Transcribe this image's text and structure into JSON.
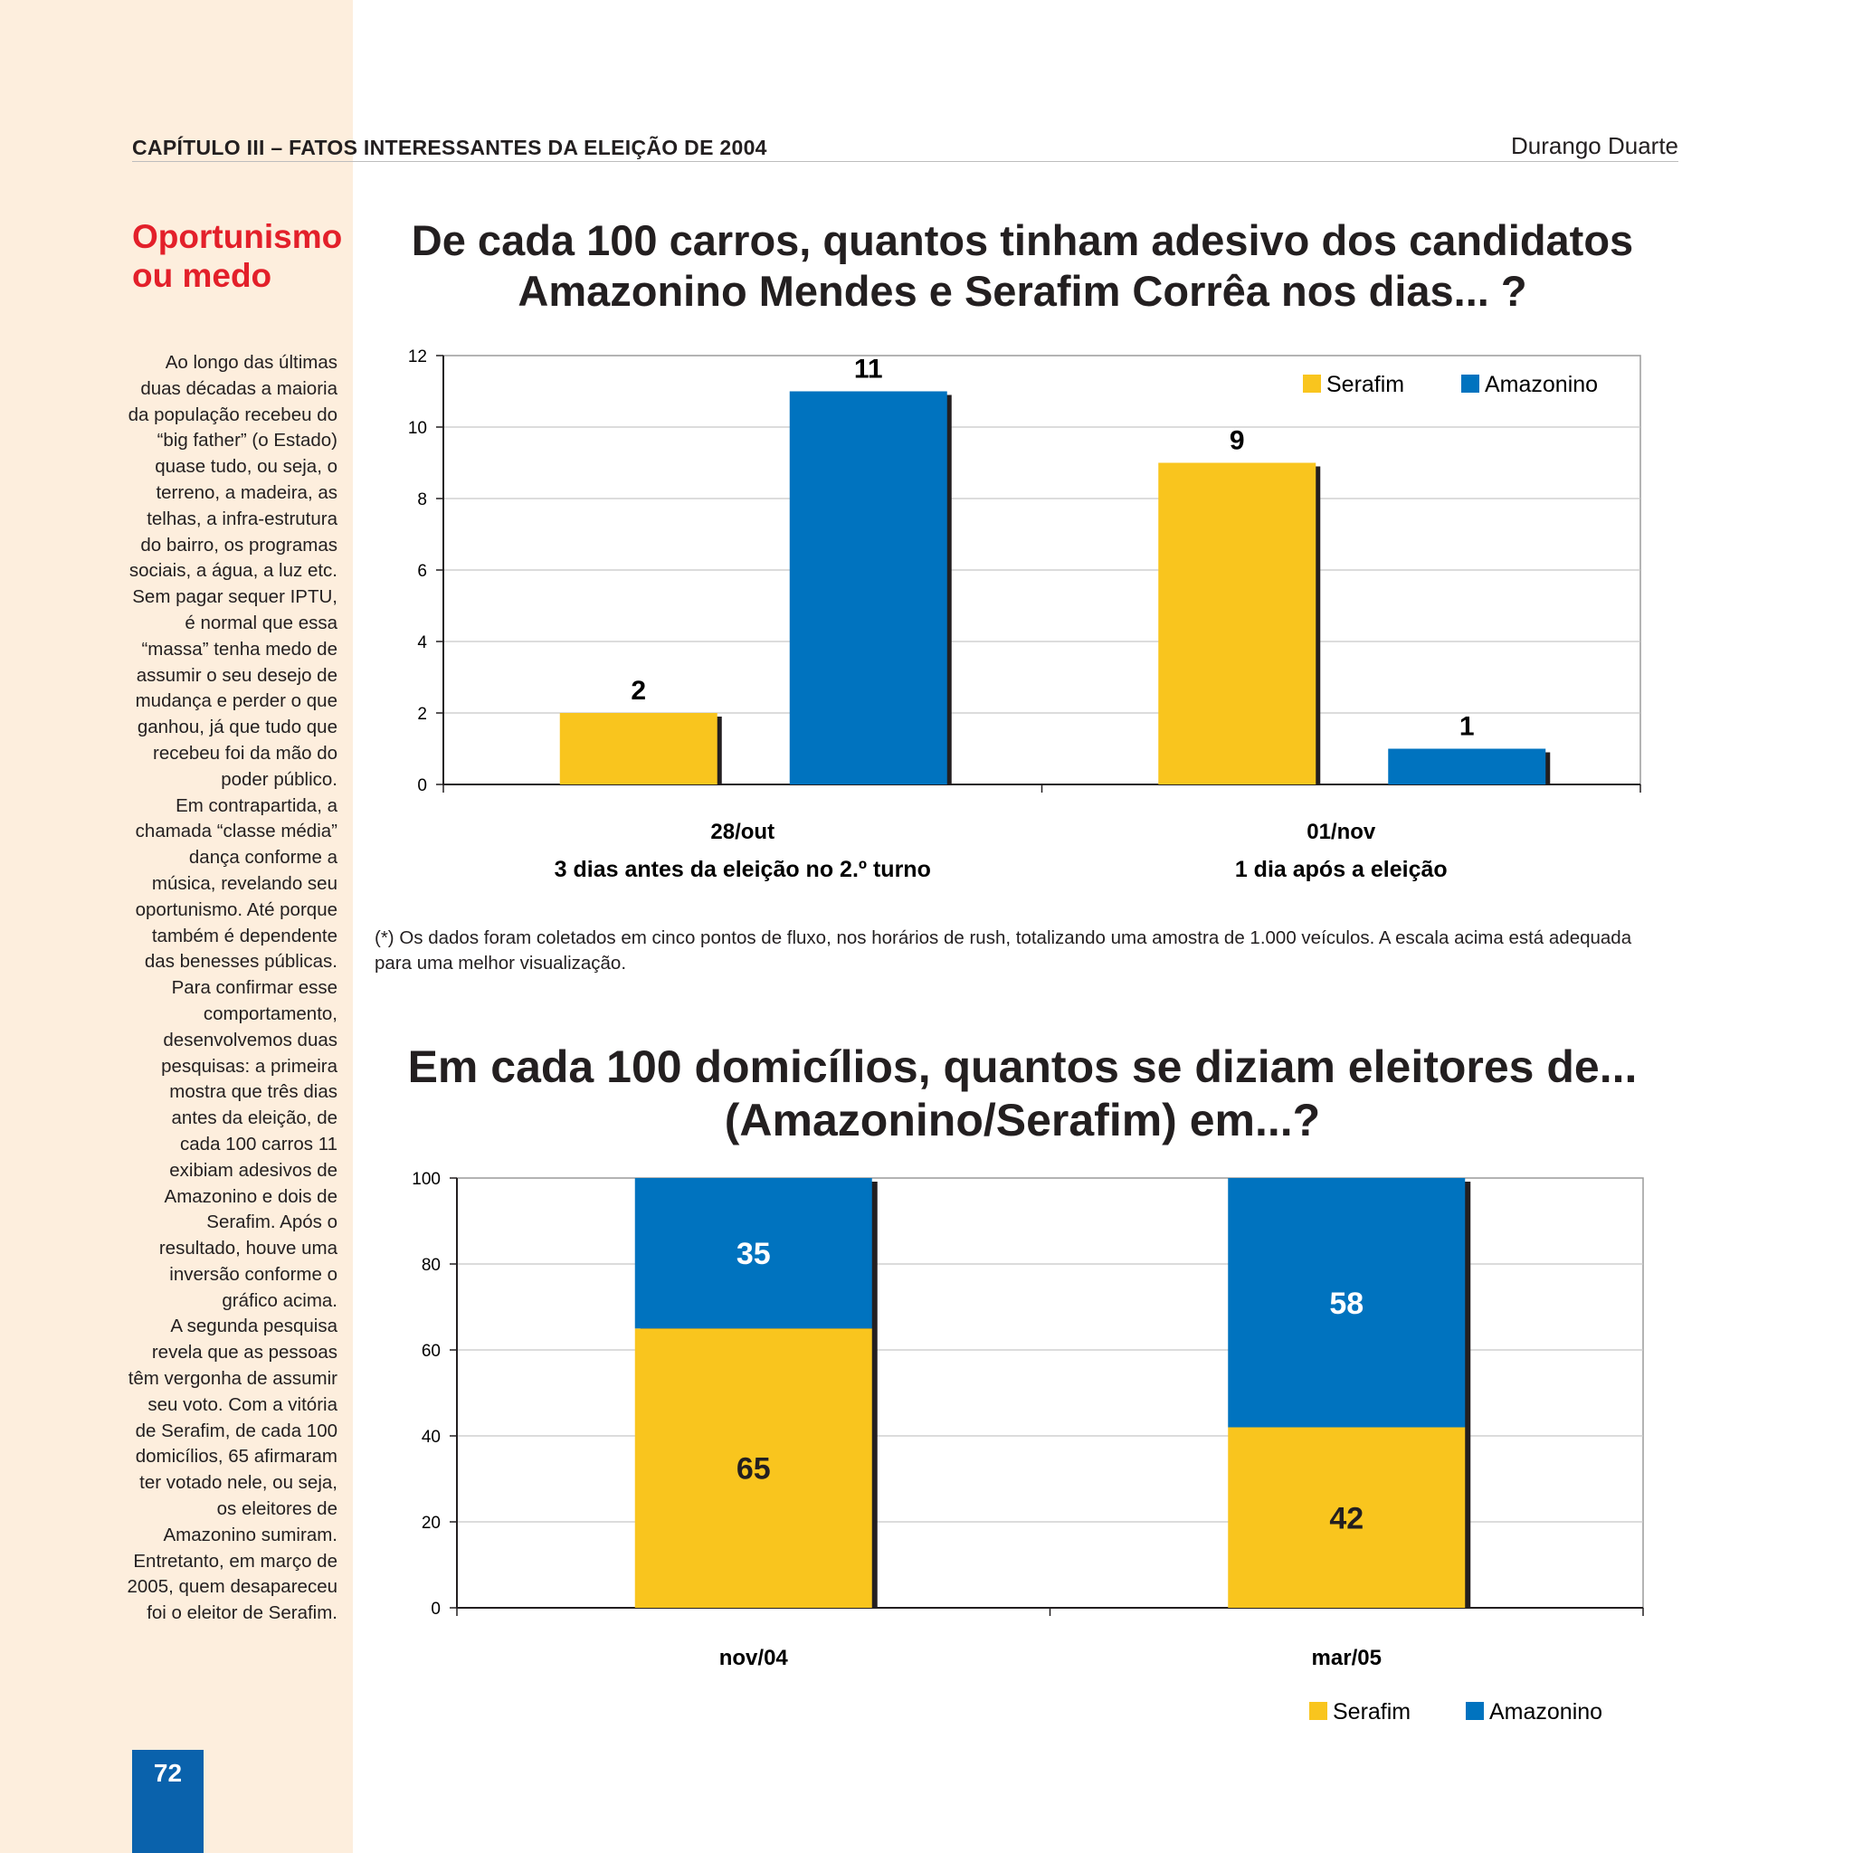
{
  "header": {
    "chapter": "CAPÍTULO III – FATOS INTERESSANTES DA ELEIÇÃO DE 2004",
    "author": "Durango Duarte"
  },
  "sidebar": {
    "title": "Oportunismo ou medo",
    "paragraphs": [
      "Ao longo das últimas duas décadas a maioria da população recebeu do “big father” (o Estado) quase tudo, ou seja, o terreno, a madeira, as telhas, a infra-estrutura do bairro, os programas sociais, a água, a luz etc. Sem pagar sequer IPTU, é normal que essa “massa” tenha medo de assumir o seu desejo de mudança e perder o que ganhou, já que tudo que recebeu foi da mão do poder público.",
      "Em contrapartida, a chamada “classe média” dança conforme a música, revelando seu oportunismo. Até porque também é dependente das benesses públicas.",
      "Para confirmar esse comportamento, desenvolvemos duas pesquisas: a primeira mostra que três dias antes da eleição, de cada 100 carros 11 exibiam adesivos de Amazonino e dois de Serafim. Após o resultado, houve uma inversão conforme o gráfico acima.",
      "A segunda pesquisa revela que as pessoas têm vergonha de assumir seu voto. Com a vitória de Serafim, de cada 100 domicílios, 65 afirmaram ter votado nele, ou seja, os eleitores de Amazonino sumiram. Entretanto, em março de 2005, quem desapareceu foi o eleitor de Serafim."
    ]
  },
  "page_number": "72",
  "footnote": "(*) Os dados foram coletados em cinco pontos de fluxo, nos horários de rush, totalizando uma amostra de 1.000 veículos. A escala acima está adequada para uma melhor visualização.",
  "colors": {
    "serafim": "#f9c51e",
    "amazonino": "#0073bf",
    "red": "#e3202a"
  },
  "chart_data": [
    {
      "type": "bar",
      "title": "De cada 100 carros, quantos tinham adesivo dos candidatos Amazonino Mendes e Serafim Corrêa nos dias... ?",
      "categories": [
        "28/out",
        "01/nov"
      ],
      "category_sublabels": [
        "3 dias antes da eleição no 2.º turno",
        "1 dia após a eleição"
      ],
      "series": [
        {
          "name": "Serafim",
          "values": [
            2,
            9
          ]
        },
        {
          "name": "Amazonino",
          "values": [
            11,
            1
          ]
        }
      ],
      "value_labels": [
        [
          "2",
          "9"
        ],
        [
          "11",
          "1"
        ]
      ],
      "ylim": [
        0,
        12
      ],
      "yticks": [
        0,
        2,
        4,
        6,
        8,
        10,
        12
      ],
      "grid": true,
      "legend": "top-right"
    },
    {
      "type": "bar",
      "stacked": true,
      "title": "Em cada 100 domicílios, quantos se diziam eleitores de... (Amazonino/Serafim) em...?",
      "categories": [
        "nov/04",
        "mar/05"
      ],
      "series": [
        {
          "name": "Serafim",
          "values": [
            65,
            42
          ]
        },
        {
          "name": "Amazonino",
          "values": [
            35,
            58
          ]
        }
      ],
      "ylim": [
        0,
        100
      ],
      "yticks": [
        0,
        20,
        40,
        60,
        80,
        100
      ],
      "grid": true,
      "legend": "bottom-right"
    }
  ]
}
